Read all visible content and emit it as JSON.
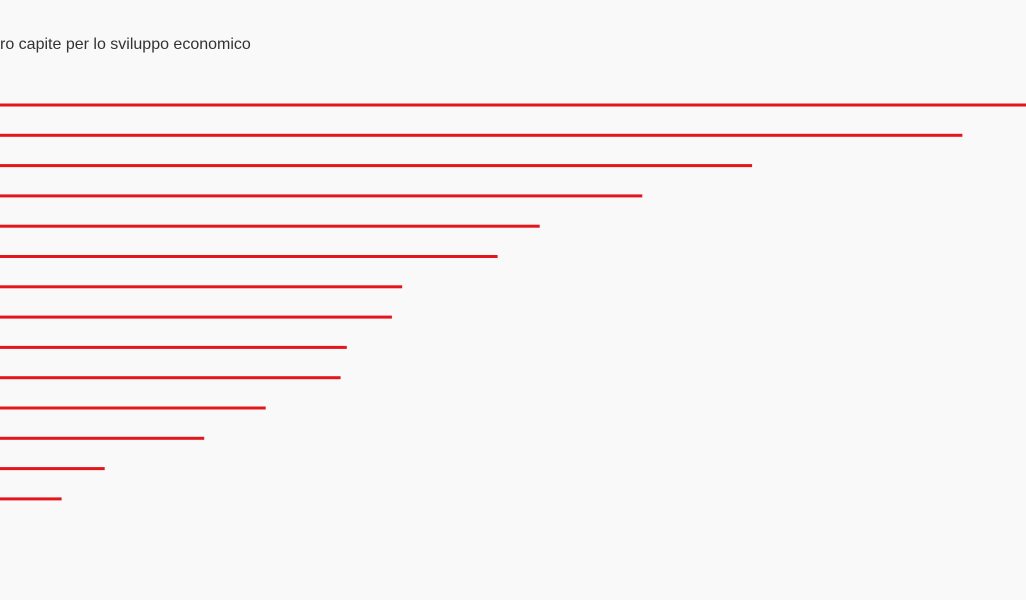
{
  "chart_data": {
    "type": "bar",
    "orientation": "horizontal",
    "title": "ro capite per lo sviluppo economico",
    "series": [
      {
        "values": [
          100,
          93.8,
          73.3,
          62.6,
          52.6,
          48.5,
          39.2,
          38.2,
          33.8,
          33.2,
          25.9,
          19.9,
          10.2,
          6.0
        ],
        "color": "#e3161b"
      }
    ],
    "xlim": [
      0,
      100
    ],
    "grid": false,
    "legend": "none"
  }
}
